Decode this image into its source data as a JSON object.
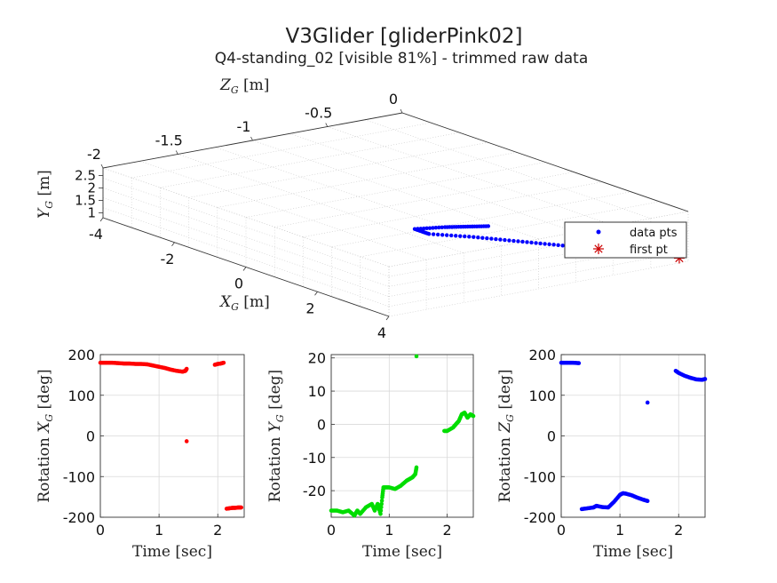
{
  "figure": {
    "title": "V3Glider [gliderPink02]",
    "subtitle": "Q4-standing_02 [visible 81%] - trimmed raw data"
  },
  "chart_data": [
    {
      "type": "scatter",
      "view": "3d-box",
      "axes": {
        "x": {
          "label": "X_G [m]",
          "ticks": [
            "-4",
            "-2",
            "0",
            "2",
            "4"
          ],
          "range": [
            -4,
            4
          ]
        },
        "y": {
          "label": "Y_G [m]",
          "ticks": [
            "1",
            "1.5",
            "2",
            "2.5"
          ],
          "range": [
            0.8,
            2.8
          ]
        },
        "z": {
          "label": "Z_G [m]",
          "ticks": [
            "-2",
            "-1.5",
            "-1",
            "-0.5",
            "0"
          ],
          "range": [
            -2,
            0
          ]
        }
      },
      "grid": true,
      "legend": {
        "placement": "right",
        "entries": [
          {
            "label": "data pts",
            "color": "#0000ff",
            "marker": "dot"
          },
          {
            "label": "first pt",
            "color": "#cc0000",
            "marker": "asterisk"
          }
        ]
      },
      "series": [
        {
          "name": "data pts",
          "color": "#0000ff",
          "points": [
            {
              "x": 3.6,
              "y": 0.85,
              "z": 0
            },
            {
              "x": 3.4,
              "y": 1.05,
              "z": -0.2
            },
            {
              "x": 3.2,
              "y": 1.3,
              "z": -0.4
            },
            {
              "x": 3.0,
              "y": 1.6,
              "z": -0.6
            },
            {
              "x": 2.8,
              "y": 1.95,
              "z": -0.85
            },
            {
              "x": 2.6,
              "y": 2.3,
              "z": -1.1
            },
            {
              "x": 2.4,
              "y": 2.6,
              "z": -1.35
            },
            {
              "x": 2.0,
              "y": 2.6,
              "z": -1.35
            },
            {
              "x": 1.8,
              "y": 2.3,
              "z": -1.1
            },
            {
              "x": 1.6,
              "y": 2.0,
              "z": -0.9
            },
            {
              "x": 1.4,
              "y": 1.7,
              "z": -0.7
            }
          ]
        },
        {
          "name": "first pt",
          "color": "#cc0000",
          "points": [
            {
              "x": 3.75,
              "y": 0.8,
              "z": 0
            }
          ]
        }
      ]
    },
    {
      "type": "scatter",
      "xlabel": "Time [sec]",
      "ylabel": "Rotation X_G [deg]",
      "xlim": [
        0,
        2.45
      ],
      "ylim": [
        -200,
        200
      ],
      "xticks": [
        "0",
        "1",
        "2"
      ],
      "yticks": [
        "-200",
        "-100",
        "0",
        "100",
        "200"
      ],
      "grid": true,
      "color": "#ff0000",
      "points": [
        [
          0.0,
          180
        ],
        [
          0.1,
          180
        ],
        [
          0.2,
          180
        ],
        [
          0.3,
          179
        ],
        [
          0.4,
          178
        ],
        [
          0.5,
          178
        ],
        [
          0.6,
          177
        ],
        [
          0.7,
          177
        ],
        [
          0.8,
          176
        ],
        [
          0.9,
          173
        ],
        [
          1.0,
          170
        ],
        [
          1.1,
          167
        ],
        [
          1.2,
          163
        ],
        [
          1.3,
          160
        ],
        [
          1.4,
          158
        ],
        [
          1.45,
          160
        ],
        [
          1.47,
          165
        ],
        [
          1.47,
          -13
        ],
        [
          1.95,
          175
        ],
        [
          2.0,
          177
        ],
        [
          2.05,
          178
        ],
        [
          2.1,
          180
        ],
        [
          2.15,
          -179
        ],
        [
          2.2,
          -178
        ],
        [
          2.25,
          -177
        ],
        [
          2.3,
          -177
        ],
        [
          2.35,
          -176
        ],
        [
          2.4,
          -176
        ]
      ]
    },
    {
      "type": "scatter",
      "xlabel": "Time [sec]",
      "ylabel": "Rotation Y_G [deg]",
      "xlim": [
        0,
        2.45
      ],
      "ylim": [
        -28,
        21
      ],
      "xticks": [
        "0",
        "1",
        "2"
      ],
      "yticks": [
        "-20",
        "-10",
        "0",
        "10",
        "20"
      ],
      "grid": true,
      "color": "#00dd00",
      "points": [
        [
          0.0,
          -26
        ],
        [
          0.1,
          -26
        ],
        [
          0.2,
          -26.5
        ],
        [
          0.3,
          -26
        ],
        [
          0.4,
          -27.5
        ],
        [
          0.45,
          -26
        ],
        [
          0.5,
          -27
        ],
        [
          0.6,
          -25
        ],
        [
          0.7,
          -24
        ],
        [
          0.75,
          -26
        ],
        [
          0.8,
          -24
        ],
        [
          0.85,
          -27
        ],
        [
          0.88,
          -22
        ],
        [
          0.9,
          -19
        ],
        [
          0.95,
          -19
        ],
        [
          1.0,
          -19
        ],
        [
          1.1,
          -19.5
        ],
        [
          1.2,
          -18.5
        ],
        [
          1.3,
          -17
        ],
        [
          1.35,
          -16.5
        ],
        [
          1.4,
          -16
        ],
        [
          1.45,
          -15
        ],
        [
          1.47,
          -13
        ],
        [
          1.47,
          20.5
        ],
        [
          1.95,
          -2
        ],
        [
          2.0,
          -2
        ],
        [
          2.1,
          -1
        ],
        [
          2.15,
          0
        ],
        [
          2.2,
          1
        ],
        [
          2.25,
          3
        ],
        [
          2.3,
          3.5
        ],
        [
          2.35,
          2
        ],
        [
          2.4,
          3
        ],
        [
          2.45,
          2.5
        ]
      ]
    },
    {
      "type": "scatter",
      "xlabel": "Time [sec]",
      "ylabel": "Rotation Z_G [deg]",
      "xlim": [
        0,
        2.45
      ],
      "ylim": [
        -200,
        200
      ],
      "xticks": [
        "0",
        "1",
        "2"
      ],
      "yticks": [
        "-200",
        "-100",
        "0",
        "100",
        "200"
      ],
      "grid": true,
      "color": "#0000ff",
      "points": [
        [
          0.0,
          180
        ],
        [
          0.1,
          180
        ],
        [
          0.2,
          180
        ],
        [
          0.3,
          179
        ],
        [
          0.35,
          -180
        ],
        [
          0.45,
          -178
        ],
        [
          0.55,
          -176
        ],
        [
          0.6,
          -172
        ],
        [
          0.7,
          -175
        ],
        [
          0.8,
          -176
        ],
        [
          0.9,
          -162
        ],
        [
          1.0,
          -145
        ],
        [
          1.05,
          -141
        ],
        [
          1.1,
          -142
        ],
        [
          1.2,
          -146
        ],
        [
          1.3,
          -152
        ],
        [
          1.4,
          -157
        ],
        [
          1.47,
          -160
        ],
        [
          1.47,
          82
        ],
        [
          1.95,
          160
        ],
        [
          2.0,
          155
        ],
        [
          2.1,
          148
        ],
        [
          2.2,
          143
        ],
        [
          2.3,
          139
        ],
        [
          2.4,
          138
        ],
        [
          2.45,
          140
        ]
      ]
    }
  ]
}
